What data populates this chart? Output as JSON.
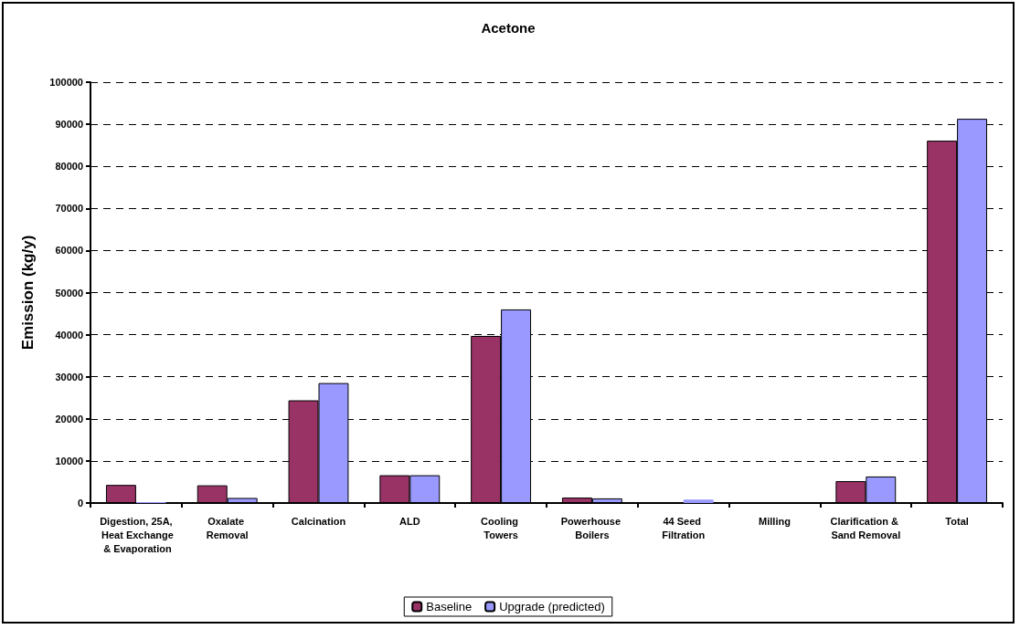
{
  "chart_data": {
    "type": "bar",
    "title": "Acetone",
    "ylabel": "Emission (kg/y)",
    "categories": [
      "Digestion, 25A, Heat Exchange & Evaporation",
      "Oxalate Removal",
      "Calcination",
      "ALD",
      "Cooling Towers",
      "Powerhouse Boilers",
      "44 Seed Filtration",
      "Milling",
      "Clarification & Sand Removal",
      "Total"
    ],
    "series": [
      {
        "name": "Baseline",
        "color": "#993366",
        "values": [
          4300,
          4200,
          24400,
          6600,
          39700,
          1300,
          0,
          0,
          5200,
          86100
        ]
      },
      {
        "name": "Upgrade (predicted)",
        "color": "#9999ff",
        "values": [
          200,
          1200,
          28500,
          6600,
          46000,
          1100,
          800,
          0,
          6300,
          91300
        ]
      }
    ],
    "ylim": [
      0,
      100000
    ],
    "yticks": [
      0,
      10000,
      20000,
      30000,
      40000,
      50000,
      60000,
      70000,
      80000,
      90000,
      100000
    ],
    "grid": "y",
    "legend": "bottom"
  }
}
